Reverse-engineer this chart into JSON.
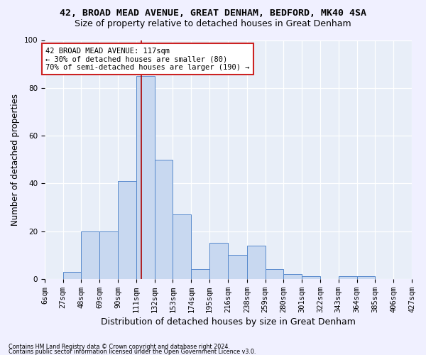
{
  "title1": "42, BROAD MEAD AVENUE, GREAT DENHAM, BEDFORD, MK40 4SA",
  "title2": "Size of property relative to detached houses in Great Denham",
  "xlabel": "Distribution of detached houses by size in Great Denham",
  "ylabel": "Number of detached properties",
  "bin_edges": [
    6,
    27,
    48,
    69,
    90,
    111,
    132,
    153,
    174,
    195,
    216,
    238,
    259,
    280,
    301,
    322,
    343,
    364,
    385,
    406,
    427
  ],
  "heights": [
    0,
    3,
    20,
    20,
    41,
    85,
    50,
    27,
    4,
    15,
    10,
    14,
    4,
    2,
    1,
    0,
    1,
    1,
    0,
    0
  ],
  "property_size": 117,
  "ylim_max": 100,
  "bar_facecolor": "#c8d8f0",
  "bar_edgecolor": "#5588cc",
  "vline_color": "#aa0000",
  "ann_text": "42 BROAD MEAD AVENUE: 117sqm\n← 30% of detached houses are smaller (80)\n70% of semi-detached houses are larger (190) →",
  "ann_facecolor": "#ffffff",
  "ann_edgecolor": "#cc2222",
  "bg_facecolor": "#e8eef8",
  "grid_color": "#ffffff",
  "fig_facecolor": "#f0f0ff",
  "footer1": "Contains HM Land Registry data © Crown copyright and database right 2024.",
  "footer2": "Contains public sector information licensed under the Open Government Licence v3.0.",
  "title1_fontsize": 9.5,
  "title2_fontsize": 9,
  "ylabel_fontsize": 8.5,
  "xlabel_fontsize": 9,
  "tick_fontsize": 7.5,
  "ann_fontsize": 7.5,
  "footer_fontsize": 5.8
}
